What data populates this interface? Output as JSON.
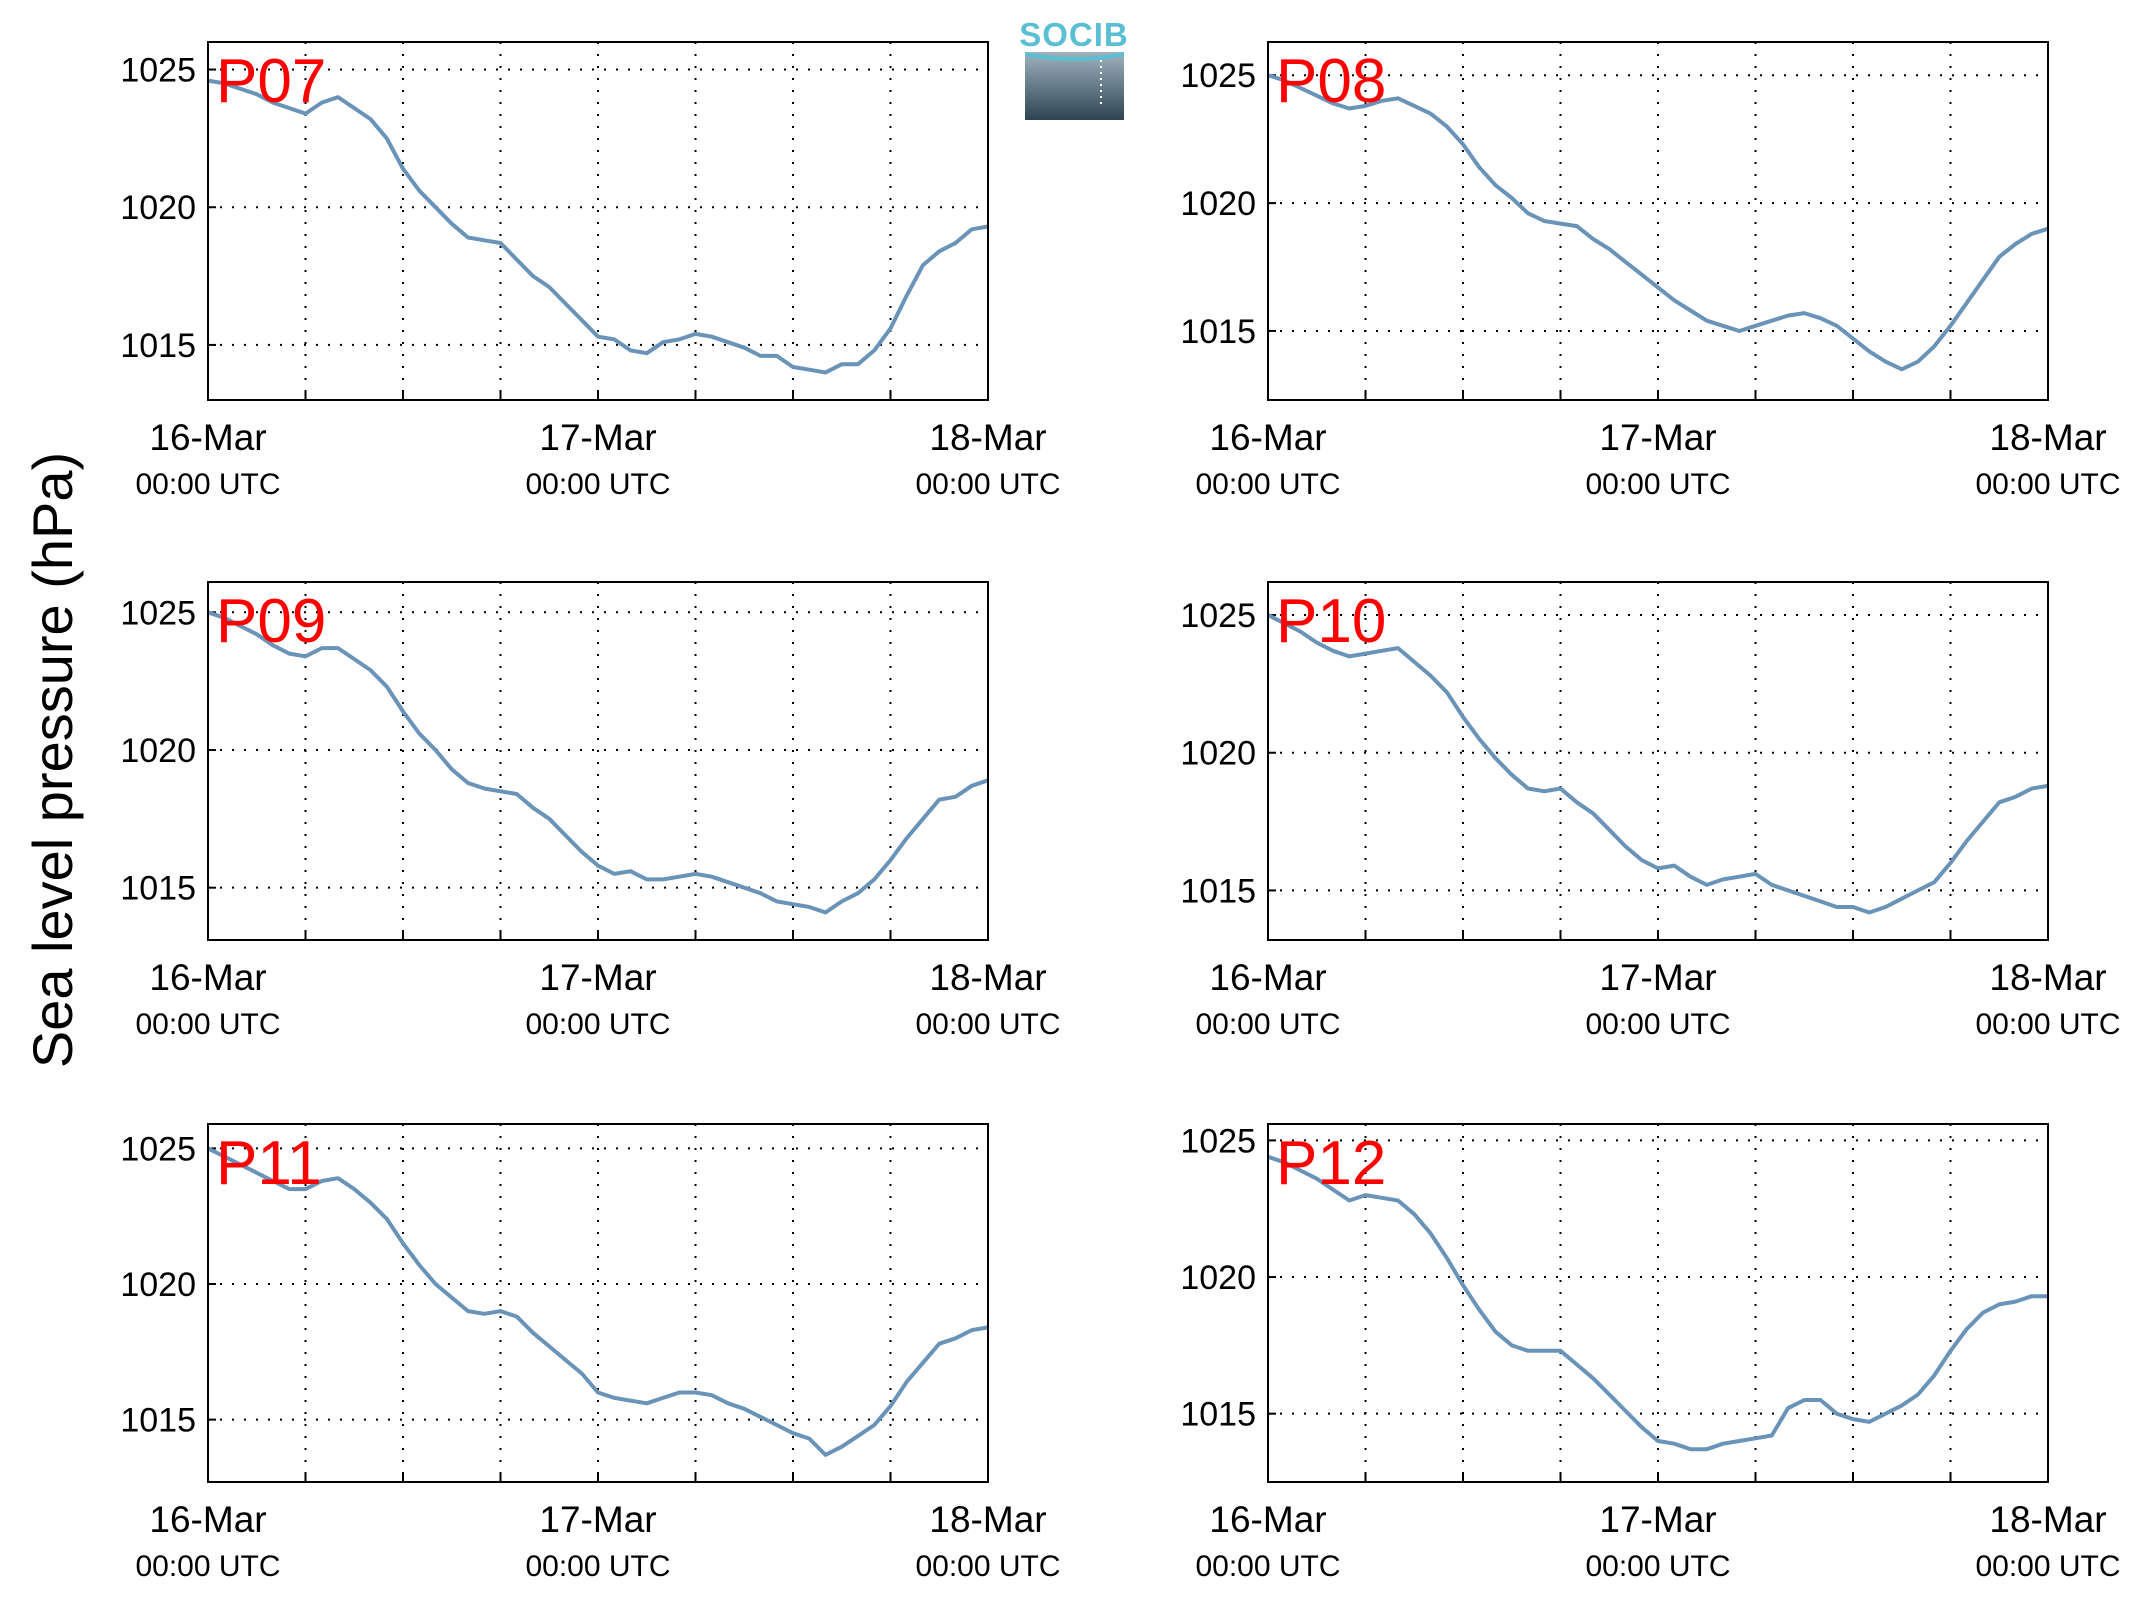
{
  "figure": {
    "ylabel": "Sea level pressure (hPa)",
    "logo_text": "SOCIB"
  },
  "colors": {
    "line": "#6a93b8",
    "panel_label": "#ff0000",
    "logo_text": "#5bbfd4",
    "logo_top": "#9fb3bf",
    "logo_bottom": "#2e4451"
  },
  "chart_data": [
    {
      "type": "line",
      "title": "P07",
      "xlabel": "",
      "ylabel": "Sea level pressure (hPa)",
      "x_unit": "hours since 16-Mar 00:00 UTC",
      "xlim": [
        0,
        48
      ],
      "ylim": [
        1013,
        1026
      ],
      "yticks": [
        1015,
        1020,
        1025
      ],
      "xticks": [
        {
          "date": "16-Mar",
          "time": "00:00 UTC"
        },
        {
          "date": "17-Mar",
          "time": "00:00 UTC"
        },
        {
          "date": "18-Mar",
          "time": "00:00 UTC"
        }
      ],
      "grid": true,
      "series": [
        {
          "x": [
            0,
            1,
            2,
            3,
            4,
            5,
            6,
            7,
            8,
            9,
            10,
            11,
            12,
            13,
            14,
            15,
            16,
            17,
            18,
            19,
            20,
            21,
            22,
            23,
            24,
            25,
            26,
            27,
            28,
            29,
            30,
            31,
            32,
            33,
            34,
            35,
            36,
            37,
            38,
            39,
            40,
            41,
            42,
            43,
            44,
            45,
            46,
            47,
            48
          ],
          "y": [
            1024.6,
            1024.5,
            1024.3,
            1024.1,
            1023.8,
            1023.6,
            1023.4,
            1023.8,
            1024.0,
            1023.6,
            1023.2,
            1022.5,
            1021.4,
            1020.6,
            1020.0,
            1019.4,
            1018.9,
            1018.8,
            1018.7,
            1018.1,
            1017.5,
            1017.1,
            1016.5,
            1015.9,
            1015.3,
            1015.2,
            1014.8,
            1014.7,
            1015.1,
            1015.2,
            1015.4,
            1015.3,
            1015.1,
            1014.9,
            1014.6,
            1014.6,
            1014.2,
            1014.1,
            1014.0,
            1014.3,
            1014.3,
            1014.8,
            1015.6,
            1016.8,
            1017.9,
            1018.4,
            1018.7,
            1019.2,
            1019.3
          ]
        }
      ]
    },
    {
      "type": "line",
      "title": "P08",
      "xlabel": "",
      "ylabel": "Sea level pressure (hPa)",
      "x_unit": "hours since 16-Mar 00:00 UTC",
      "xlim": [
        0,
        48
      ],
      "ylim": [
        1012.3,
        1026.3
      ],
      "yticks": [
        1015,
        1020,
        1025
      ],
      "xticks": [
        {
          "date": "16-Mar",
          "time": "00:00 UTC"
        },
        {
          "date": "17-Mar",
          "time": "00:00 UTC"
        },
        {
          "date": "18-Mar",
          "time": "00:00 UTC"
        }
      ],
      "grid": true,
      "series": [
        {
          "x": [
            0,
            1,
            2,
            3,
            4,
            5,
            6,
            7,
            8,
            9,
            10,
            11,
            12,
            13,
            14,
            15,
            16,
            17,
            18,
            19,
            20,
            21,
            22,
            23,
            24,
            25,
            26,
            27,
            28,
            29,
            30,
            31,
            32,
            33,
            34,
            35,
            36,
            37,
            38,
            39,
            40,
            41,
            42,
            43,
            44,
            45,
            46,
            47,
            48
          ],
          "y": [
            1025.0,
            1024.8,
            1024.5,
            1024.2,
            1023.9,
            1023.7,
            1023.8,
            1024.0,
            1024.1,
            1023.8,
            1023.5,
            1023.0,
            1022.3,
            1021.4,
            1020.7,
            1020.2,
            1019.6,
            1019.3,
            1019.2,
            1019.1,
            1018.6,
            1018.2,
            1017.7,
            1017.2,
            1016.7,
            1016.2,
            1015.8,
            1015.4,
            1015.2,
            1015.0,
            1015.2,
            1015.4,
            1015.6,
            1015.7,
            1015.5,
            1015.2,
            1014.7,
            1014.2,
            1013.8,
            1013.5,
            1013.8,
            1014.4,
            1015.2,
            1016.1,
            1017.0,
            1017.9,
            1018.4,
            1018.8,
            1019.0
          ]
        }
      ]
    },
    {
      "type": "line",
      "title": "P09",
      "xlabel": "",
      "ylabel": "Sea level pressure (hPa)",
      "x_unit": "hours since 16-Mar 00:00 UTC",
      "xlim": [
        0,
        48
      ],
      "ylim": [
        1013.1,
        1026.1
      ],
      "yticks": [
        1015,
        1020,
        1025
      ],
      "xticks": [
        {
          "date": "16-Mar",
          "time": "00:00 UTC"
        },
        {
          "date": "17-Mar",
          "time": "00:00 UTC"
        },
        {
          "date": "18-Mar",
          "time": "00:00 UTC"
        }
      ],
      "grid": true,
      "series": [
        {
          "x": [
            0,
            1,
            2,
            3,
            4,
            5,
            6,
            7,
            8,
            9,
            10,
            11,
            12,
            13,
            14,
            15,
            16,
            17,
            18,
            19,
            20,
            21,
            22,
            23,
            24,
            25,
            26,
            27,
            28,
            29,
            30,
            31,
            32,
            33,
            34,
            35,
            36,
            37,
            38,
            39,
            40,
            41,
            42,
            43,
            44,
            45,
            46,
            47,
            48
          ],
          "y": [
            1025.0,
            1024.8,
            1024.5,
            1024.2,
            1023.8,
            1023.5,
            1023.4,
            1023.7,
            1023.7,
            1023.3,
            1022.9,
            1022.3,
            1021.4,
            1020.6,
            1020.0,
            1019.3,
            1018.8,
            1018.6,
            1018.5,
            1018.4,
            1017.9,
            1017.5,
            1016.9,
            1016.3,
            1015.8,
            1015.5,
            1015.6,
            1015.3,
            1015.3,
            1015.4,
            1015.5,
            1015.4,
            1015.2,
            1015.0,
            1014.8,
            1014.5,
            1014.4,
            1014.3,
            1014.1,
            1014.5,
            1014.8,
            1015.3,
            1016.0,
            1016.8,
            1017.5,
            1018.2,
            1018.3,
            1018.7,
            1018.9
          ]
        }
      ]
    },
    {
      "type": "line",
      "title": "P10",
      "xlabel": "",
      "ylabel": "Sea level pressure (hPa)",
      "x_unit": "hours since 16-Mar 00:00 UTC",
      "xlim": [
        0,
        48
      ],
      "ylim": [
        1013.2,
        1026.2
      ],
      "yticks": [
        1015,
        1020,
        1025
      ],
      "xticks": [
        {
          "date": "16-Mar",
          "time": "00:00 UTC"
        },
        {
          "date": "17-Mar",
          "time": "00:00 UTC"
        },
        {
          "date": "18-Mar",
          "time": "00:00 UTC"
        }
      ],
      "grid": true,
      "series": [
        {
          "x": [
            0,
            1,
            2,
            3,
            4,
            5,
            6,
            7,
            8,
            9,
            10,
            11,
            12,
            13,
            14,
            15,
            16,
            17,
            18,
            19,
            20,
            21,
            22,
            23,
            24,
            25,
            26,
            27,
            28,
            29,
            30,
            31,
            32,
            33,
            34,
            35,
            36,
            37,
            38,
            39,
            40,
            41,
            42,
            43,
            44,
            45,
            46,
            47,
            48
          ],
          "y": [
            1025.0,
            1024.7,
            1024.4,
            1024.0,
            1023.7,
            1023.5,
            1023.6,
            1023.7,
            1023.8,
            1023.3,
            1022.8,
            1022.2,
            1021.3,
            1020.5,
            1019.8,
            1019.2,
            1018.7,
            1018.6,
            1018.7,
            1018.2,
            1017.8,
            1017.2,
            1016.6,
            1016.1,
            1015.8,
            1015.9,
            1015.5,
            1015.2,
            1015.4,
            1015.5,
            1015.6,
            1015.2,
            1015.0,
            1014.8,
            1014.6,
            1014.4,
            1014.4,
            1014.2,
            1014.4,
            1014.7,
            1015.0,
            1015.3,
            1016.0,
            1016.8,
            1017.5,
            1018.2,
            1018.4,
            1018.7,
            1018.8
          ]
        }
      ]
    },
    {
      "type": "line",
      "title": "P11",
      "xlabel": "",
      "ylabel": "Sea level pressure (hPa)",
      "x_unit": "hours since 16-Mar 00:00 UTC",
      "xlim": [
        0,
        48
      ],
      "ylim": [
        1012.7,
        1025.9
      ],
      "yticks": [
        1015,
        1020,
        1025
      ],
      "xticks": [
        {
          "date": "16-Mar",
          "time": "00:00 UTC"
        },
        {
          "date": "17-Mar",
          "time": "00:00 UTC"
        },
        {
          "date": "18-Mar",
          "time": "00:00 UTC"
        }
      ],
      "grid": true,
      "series": [
        {
          "x": [
            0,
            1,
            2,
            3,
            4,
            5,
            6,
            7,
            8,
            9,
            10,
            11,
            12,
            13,
            14,
            15,
            16,
            17,
            18,
            19,
            20,
            21,
            22,
            23,
            24,
            25,
            26,
            27,
            28,
            29,
            30,
            31,
            32,
            33,
            34,
            35,
            36,
            37,
            38,
            39,
            40,
            41,
            42,
            43,
            44,
            45,
            46,
            47,
            48
          ],
          "y": [
            1025.0,
            1024.7,
            1024.4,
            1024.1,
            1023.8,
            1023.5,
            1023.5,
            1023.8,
            1023.9,
            1023.5,
            1023.0,
            1022.4,
            1021.5,
            1020.7,
            1020.0,
            1019.5,
            1019.0,
            1018.9,
            1019.0,
            1018.8,
            1018.2,
            1017.7,
            1017.2,
            1016.7,
            1016.0,
            1015.8,
            1015.7,
            1015.6,
            1015.8,
            1016.0,
            1016.0,
            1015.9,
            1015.6,
            1015.4,
            1015.1,
            1014.8,
            1014.5,
            1014.3,
            1013.7,
            1014.0,
            1014.4,
            1014.8,
            1015.5,
            1016.4,
            1017.1,
            1017.8,
            1018.0,
            1018.3,
            1018.4
          ]
        }
      ]
    },
    {
      "type": "line",
      "title": "P12",
      "xlabel": "",
      "ylabel": "Sea level pressure (hPa)",
      "x_unit": "hours since 16-Mar 00:00 UTC",
      "xlim": [
        0,
        48
      ],
      "ylim": [
        1012.5,
        1025.6
      ],
      "yticks": [
        1015,
        1020,
        1025
      ],
      "xticks": [
        {
          "date": "16-Mar",
          "time": "00:00 UTC"
        },
        {
          "date": "17-Mar",
          "time": "00:00 UTC"
        },
        {
          "date": "18-Mar",
          "time": "00:00 UTC"
        }
      ],
      "grid": true,
      "series": [
        {
          "x": [
            0,
            1,
            2,
            3,
            4,
            5,
            6,
            7,
            8,
            9,
            10,
            11,
            12,
            13,
            14,
            15,
            16,
            17,
            18,
            19,
            20,
            21,
            22,
            23,
            24,
            25,
            26,
            27,
            28,
            29,
            30,
            31,
            32,
            33,
            34,
            35,
            36,
            37,
            38,
            39,
            40,
            41,
            42,
            43,
            44,
            45,
            46,
            47,
            48
          ],
          "y": [
            1024.4,
            1024.2,
            1023.9,
            1023.6,
            1023.2,
            1022.8,
            1023.0,
            1022.9,
            1022.8,
            1022.3,
            1021.6,
            1020.7,
            1019.7,
            1018.8,
            1018.0,
            1017.5,
            1017.3,
            1017.3,
            1017.3,
            1016.8,
            1016.3,
            1015.7,
            1015.1,
            1014.5,
            1014.0,
            1013.9,
            1013.7,
            1013.7,
            1013.9,
            1014.0,
            1014.1,
            1014.2,
            1015.2,
            1015.5,
            1015.5,
            1015.0,
            1014.8,
            1014.7,
            1015.0,
            1015.3,
            1015.7,
            1016.4,
            1017.3,
            1018.1,
            1018.7,
            1019.0,
            1019.1,
            1019.3,
            1019.3
          ]
        }
      ]
    }
  ]
}
